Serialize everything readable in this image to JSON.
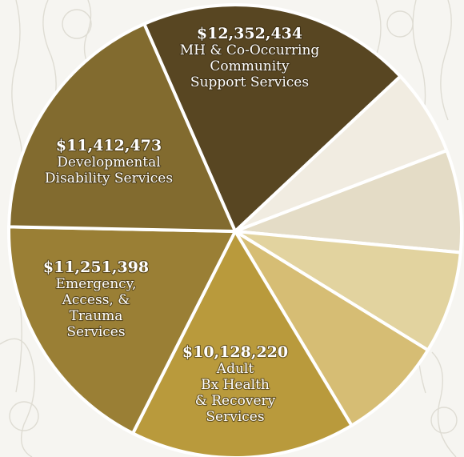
{
  "chart_data": {
    "type": "pie",
    "title": "",
    "slices": [
      {
        "label": "$12,352,434",
        "name_lines": [
          "MH & Co-Occurring",
          "Community",
          "Support Services"
        ],
        "value": 12352434,
        "color": "#584622"
      },
      {
        "label": "",
        "name_lines": [],
        "value": 3900000,
        "color": "#f1ece1"
      },
      {
        "label": "",
        "name_lines": [],
        "value": 4600000,
        "color": "#e4dcc6"
      },
      {
        "label": "",
        "name_lines": [],
        "value": 4600000,
        "color": "#e2d39f"
      },
      {
        "label": "",
        "name_lines": [],
        "value": 4800000,
        "color": "#d6bd74"
      },
      {
        "label": "$10,128,220",
        "name_lines": [
          "Adult",
          "Bx Health",
          "& Recovery",
          "Services"
        ],
        "value": 10128220,
        "color": "#b99a3c"
      },
      {
        "label": "$11,251,398",
        "name_lines": [
          "Emergency,",
          "Access, &",
          "Trauma",
          "Services"
        ],
        "value": 11251398,
        "color": "#9a7f35"
      },
      {
        "label": "$11,412,473",
        "name_lines": [
          "Developmental",
          "Disability Services"
        ],
        "value": 11412473,
        "color": "#826b2f"
      }
    ]
  }
}
